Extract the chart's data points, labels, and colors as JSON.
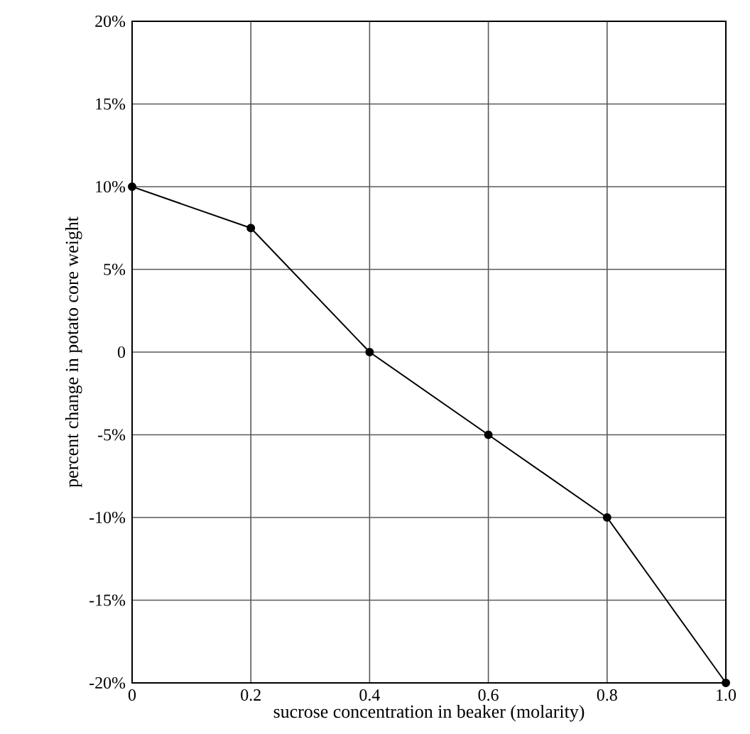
{
  "chart_data": {
    "type": "line",
    "xlabel": "sucrose concentration in beaker (molarity)",
    "ylabel": "percent change in potato core weight",
    "x": [
      0,
      0.2,
      0.4,
      0.6,
      0.8,
      1
    ],
    "values": [
      10,
      7.5,
      0,
      -5,
      -10,
      -20
    ],
    "color": "#000000",
    "marker": "circle",
    "line_style": "solid",
    "grid": true,
    "xlim": [
      0,
      1
    ],
    "ylim": [
      -20,
      20
    ],
    "xticks": [
      0,
      0.2,
      0.4,
      0.6,
      0.8,
      {
        "value": 1,
        "label": "1.0"
      }
    ],
    "yticks": [
      {
        "value": -20,
        "label": "-20%"
      },
      {
        "value": -15,
        "label": "-15%"
      },
      {
        "value": -10,
        "label": "-10%"
      },
      {
        "value": -5,
        "label": "-5%"
      },
      0,
      {
        "value": 5,
        "label": "5%"
      },
      {
        "value": 10,
        "label": "10%"
      },
      {
        "value": 15,
        "label": "15%"
      },
      {
        "value": 20,
        "label": "20%"
      }
    ]
  }
}
